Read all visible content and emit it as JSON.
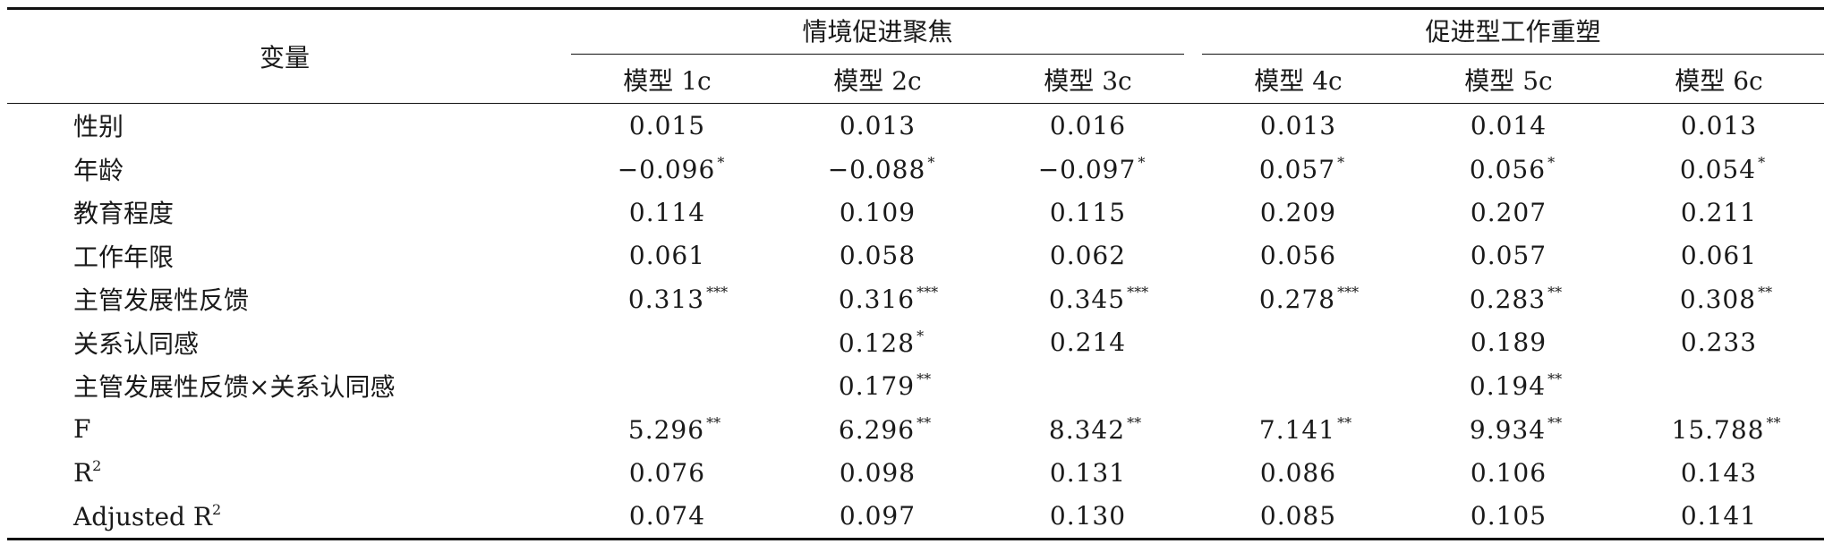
{
  "table": {
    "variable_header": "变量",
    "groups": [
      {
        "label": "情境促进聚焦",
        "models": [
          "模型 1c",
          "模型 2c",
          "模型 3c"
        ]
      },
      {
        "label": "促进型工作重塑",
        "models": [
          "模型 4c",
          "模型 5c",
          "模型 6c"
        ]
      }
    ],
    "rows": [
      {
        "label": "性别",
        "sup": "",
        "cells": [
          {
            "v": "0.015",
            "s": ""
          },
          {
            "v": "0.013",
            "s": ""
          },
          {
            "v": "0.016",
            "s": ""
          },
          {
            "v": "0.013",
            "s": ""
          },
          {
            "v": "0.014",
            "s": ""
          },
          {
            "v": "0.013",
            "s": ""
          }
        ]
      },
      {
        "label": "年龄",
        "sup": "",
        "cells": [
          {
            "v": "−0.096",
            "s": "*"
          },
          {
            "v": "−0.088",
            "s": "*"
          },
          {
            "v": "−0.097",
            "s": "*"
          },
          {
            "v": "0.057",
            "s": "*"
          },
          {
            "v": "0.056",
            "s": "*"
          },
          {
            "v": "0.054",
            "s": "*"
          }
        ]
      },
      {
        "label": "教育程度",
        "sup": "",
        "cells": [
          {
            "v": "0.114",
            "s": ""
          },
          {
            "v": "0.109",
            "s": ""
          },
          {
            "v": "0.115",
            "s": ""
          },
          {
            "v": "0.209",
            "s": ""
          },
          {
            "v": "0.207",
            "s": ""
          },
          {
            "v": "0.211",
            "s": ""
          }
        ]
      },
      {
        "label": "工作年限",
        "sup": "",
        "cells": [
          {
            "v": "0.061",
            "s": ""
          },
          {
            "v": "0.058",
            "s": ""
          },
          {
            "v": "0.062",
            "s": ""
          },
          {
            "v": "0.056",
            "s": ""
          },
          {
            "v": "0.057",
            "s": ""
          },
          {
            "v": "0.061",
            "s": ""
          }
        ]
      },
      {
        "label": "主管发展性反馈",
        "sup": "",
        "cells": [
          {
            "v": "0.313",
            "s": "***"
          },
          {
            "v": "0.316",
            "s": "***"
          },
          {
            "v": "0.345",
            "s": "***"
          },
          {
            "v": "0.278",
            "s": "***"
          },
          {
            "v": "0.283",
            "s": "**"
          },
          {
            "v": "0.308",
            "s": "**"
          }
        ]
      },
      {
        "label": "关系认同感",
        "sup": "",
        "cells": [
          {
            "v": "",
            "s": ""
          },
          {
            "v": "0.128",
            "s": "*"
          },
          {
            "v": "0.214",
            "s": ""
          },
          {
            "v": "",
            "s": ""
          },
          {
            "v": "0.189",
            "s": ""
          },
          {
            "v": "0.233",
            "s": ""
          }
        ]
      },
      {
        "label": "主管发展性反馈×关系认同感",
        "sup": "",
        "cells": [
          {
            "v": "",
            "s": ""
          },
          {
            "v": "0.179",
            "s": "**"
          },
          {
            "v": "",
            "s": ""
          },
          {
            "v": "",
            "s": ""
          },
          {
            "v": "0.194",
            "s": "**"
          },
          {
            "v": "",
            "s": ""
          }
        ]
      },
      {
        "label": "F",
        "sup": "",
        "cells": [
          {
            "v": "5.296",
            "s": "**"
          },
          {
            "v": "6.296",
            "s": "**"
          },
          {
            "v": "8.342",
            "s": "**"
          },
          {
            "v": "7.141",
            "s": "**"
          },
          {
            "v": "9.934",
            "s": "**"
          },
          {
            "v": "15.788",
            "s": "**"
          }
        ]
      },
      {
        "label": "R",
        "sup": "2",
        "cells": [
          {
            "v": "0.076",
            "s": ""
          },
          {
            "v": "0.098",
            "s": ""
          },
          {
            "v": "0.131",
            "s": ""
          },
          {
            "v": "0.086",
            "s": ""
          },
          {
            "v": "0.106",
            "s": ""
          },
          {
            "v": "0.143",
            "s": ""
          }
        ]
      },
      {
        "label": "Adjusted R",
        "sup": "2",
        "cells": [
          {
            "v": "0.074",
            "s": ""
          },
          {
            "v": "0.097",
            "s": ""
          },
          {
            "v": "0.130",
            "s": ""
          },
          {
            "v": "0.085",
            "s": ""
          },
          {
            "v": "0.105",
            "s": ""
          },
          {
            "v": "0.141",
            "s": ""
          }
        ]
      }
    ]
  }
}
